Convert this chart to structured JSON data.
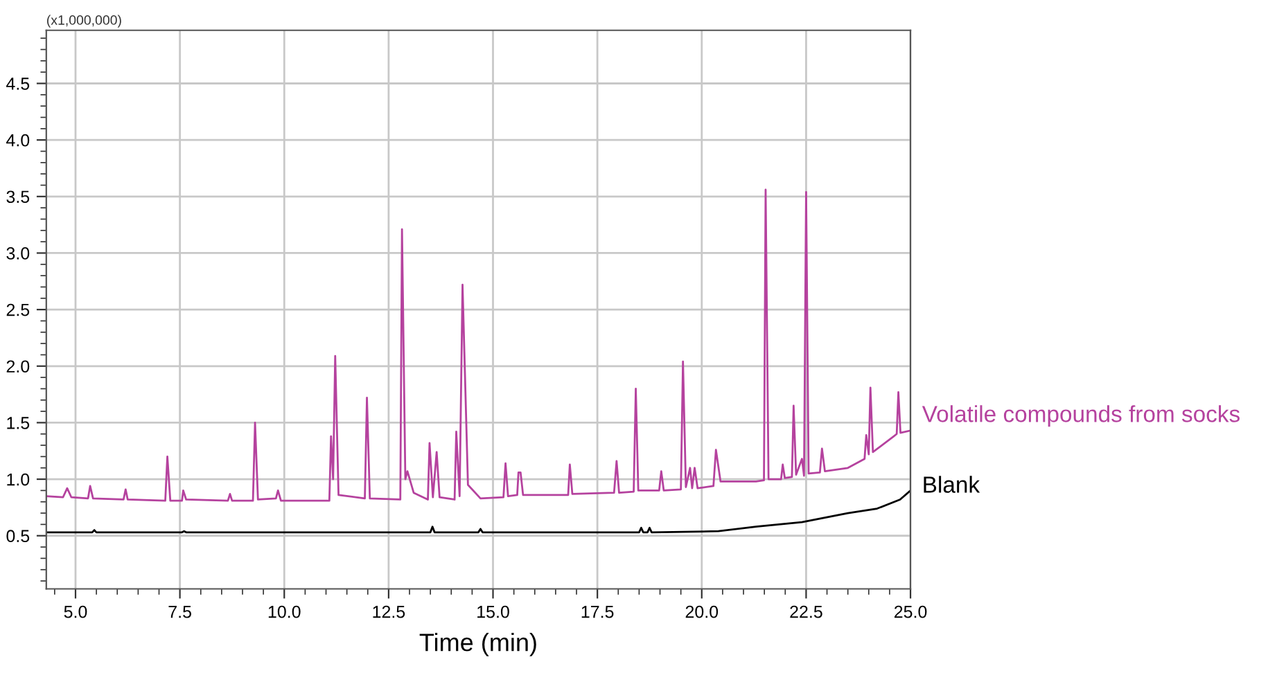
{
  "chart_data": {
    "type": "line",
    "xlabel": "Time (min)",
    "annotations": [
      "(x1,000,000)"
    ],
    "xlim": [
      4.3,
      25.0
    ],
    "ylim": [
      0.03,
      4.97
    ],
    "xticks": [
      {
        "value": 4.5,
        "label": null
      },
      {
        "value": 5.0,
        "label": "5.0"
      },
      {
        "value": 5.5,
        "label": null
      },
      {
        "value": 6.0,
        "label": null
      },
      {
        "value": 6.5,
        "label": null
      },
      {
        "value": 7.0,
        "label": null
      },
      {
        "value": 7.5,
        "label": "7.5"
      },
      {
        "value": 8.0,
        "label": null
      },
      {
        "value": 8.5,
        "label": null
      },
      {
        "value": 9.0,
        "label": null
      },
      {
        "value": 9.5,
        "label": null
      },
      {
        "value": 10.0,
        "label": "10.0"
      },
      {
        "value": 10.5,
        "label": null
      },
      {
        "value": 11.0,
        "label": null
      },
      {
        "value": 11.5,
        "label": null
      },
      {
        "value": 12.0,
        "label": null
      },
      {
        "value": 12.5,
        "label": "12.5"
      },
      {
        "value": 13.0,
        "label": null
      },
      {
        "value": 13.5,
        "label": null
      },
      {
        "value": 14.0,
        "label": null
      },
      {
        "value": 14.5,
        "label": null
      },
      {
        "value": 15.0,
        "label": "15.0"
      },
      {
        "value": 15.5,
        "label": null
      },
      {
        "value": 16.0,
        "label": null
      },
      {
        "value": 16.5,
        "label": null
      },
      {
        "value": 17.0,
        "label": null
      },
      {
        "value": 17.5,
        "label": "17.5"
      },
      {
        "value": 18.0,
        "label": null
      },
      {
        "value": 18.5,
        "label": null
      },
      {
        "value": 19.0,
        "label": null
      },
      {
        "value": 19.5,
        "label": null
      },
      {
        "value": 20.0,
        "label": "20.0"
      },
      {
        "value": 20.5,
        "label": null
      },
      {
        "value": 21.0,
        "label": null
      },
      {
        "value": 21.5,
        "label": null
      },
      {
        "value": 22.0,
        "label": null
      },
      {
        "value": 22.5,
        "label": "22.5"
      },
      {
        "value": 23.0,
        "label": null
      },
      {
        "value": 23.5,
        "label": null
      },
      {
        "value": 24.0,
        "label": null
      },
      {
        "value": 24.5,
        "label": null
      },
      {
        "value": 25.0,
        "label": "25.0"
      }
    ],
    "yticks": [
      {
        "value": 0.1,
        "label": null
      },
      {
        "value": 0.2,
        "label": null
      },
      {
        "value": 0.3,
        "label": null
      },
      {
        "value": 0.4,
        "label": null
      },
      {
        "value": 0.5,
        "label": "0.5"
      },
      {
        "value": 0.6,
        "label": null
      },
      {
        "value": 0.7,
        "label": null
      },
      {
        "value": 0.8,
        "label": null
      },
      {
        "value": 0.9,
        "label": null
      },
      {
        "value": 1.0,
        "label": "1.0"
      },
      {
        "value": 1.1,
        "label": null
      },
      {
        "value": 1.2,
        "label": null
      },
      {
        "value": 1.3,
        "label": null
      },
      {
        "value": 1.4,
        "label": null
      },
      {
        "value": 1.5,
        "label": "1.5"
      },
      {
        "value": 1.6,
        "label": null
      },
      {
        "value": 1.7,
        "label": null
      },
      {
        "value": 1.8,
        "label": null
      },
      {
        "value": 1.9,
        "label": null
      },
      {
        "value": 2.0,
        "label": "2.0"
      },
      {
        "value": 2.1,
        "label": null
      },
      {
        "value": 2.2,
        "label": null
      },
      {
        "value": 2.3,
        "label": null
      },
      {
        "value": 2.4,
        "label": null
      },
      {
        "value": 2.5,
        "label": "2.5"
      },
      {
        "value": 2.6,
        "label": null
      },
      {
        "value": 2.7,
        "label": null
      },
      {
        "value": 2.8,
        "label": null
      },
      {
        "value": 2.9,
        "label": null
      },
      {
        "value": 3.0,
        "label": "3.0"
      },
      {
        "value": 3.1,
        "label": null
      },
      {
        "value": 3.2,
        "label": null
      },
      {
        "value": 3.3,
        "label": null
      },
      {
        "value": 3.4,
        "label": null
      },
      {
        "value": 3.5,
        "label": "3.5"
      },
      {
        "value": 3.6,
        "label": null
      },
      {
        "value": 3.7,
        "label": null
      },
      {
        "value": 3.8,
        "label": null
      },
      {
        "value": 3.9,
        "label": null
      },
      {
        "value": 4.0,
        "label": "4.0"
      },
      {
        "value": 4.1,
        "label": null
      },
      {
        "value": 4.2,
        "label": null
      },
      {
        "value": 4.3,
        "label": null
      },
      {
        "value": 4.4,
        "label": null
      },
      {
        "value": 4.5,
        "label": "4.5"
      },
      {
        "value": 4.6,
        "label": null
      },
      {
        "value": 4.7,
        "label": null
      },
      {
        "value": 4.8,
        "label": null
      },
      {
        "value": 4.9,
        "label": null
      }
    ],
    "grid": true,
    "legend": false,
    "marker": "none",
    "line_style": "solid",
    "series": [
      {
        "name": "Volatile compounds from socks",
        "color": "#b5429e",
        "x": [
          4.3,
          4.7,
          4.8,
          4.9,
          5.3,
          5.35,
          5.42,
          6.15,
          6.2,
          6.25,
          7.15,
          7.2,
          7.27,
          7.55,
          7.58,
          7.65,
          8.65,
          8.7,
          8.75,
          9.25,
          9.3,
          9.37,
          9.8,
          9.85,
          9.92,
          11.08,
          11.12,
          11.17,
          11.22,
          11.3,
          11.93,
          11.98,
          12.05,
          12.78,
          12.82,
          12.9,
          12.95,
          13.1,
          13.44,
          13.48,
          13.56,
          13.65,
          13.72,
          14.08,
          14.12,
          14.2,
          14.27,
          14.4,
          14.7,
          15.25,
          15.3,
          15.36,
          15.58,
          15.61,
          15.66,
          15.72,
          16.8,
          16.84,
          16.9,
          17.9,
          17.96,
          18.02,
          18.37,
          18.42,
          18.48,
          18.98,
          19.03,
          19.09,
          19.5,
          19.55,
          19.62,
          19.72,
          19.77,
          19.83,
          19.9,
          20.28,
          20.34,
          20.45,
          21.3,
          21.49,
          21.53,
          21.6,
          21.9,
          21.94,
          21.99,
          22.16,
          22.2,
          22.26,
          22.4,
          22.45,
          22.5,
          22.56,
          22.83,
          22.88,
          22.95,
          23.5,
          23.9,
          23.94,
          24.0,
          24.04,
          24.1,
          24.6,
          24.67,
          24.71,
          24.76,
          25.0
        ],
        "values": [
          0.85,
          0.84,
          0.92,
          0.84,
          0.83,
          0.94,
          0.83,
          0.82,
          0.91,
          0.82,
          0.81,
          1.2,
          0.81,
          0.81,
          0.9,
          0.82,
          0.81,
          0.87,
          0.81,
          0.81,
          1.5,
          0.82,
          0.83,
          0.9,
          0.81,
          0.81,
          1.38,
          1.0,
          2.09,
          0.86,
          0.83,
          1.72,
          0.83,
          0.82,
          3.21,
          1.0,
          1.07,
          0.88,
          0.82,
          1.32,
          0.84,
          1.24,
          0.84,
          0.82,
          1.42,
          0.85,
          2.72,
          0.95,
          0.83,
          0.84,
          1.14,
          0.85,
          0.86,
          1.06,
          1.06,
          0.86,
          0.86,
          1.13,
          0.87,
          0.88,
          1.16,
          0.88,
          0.89,
          1.8,
          0.9,
          0.9,
          1.07,
          0.9,
          0.91,
          2.04,
          0.93,
          1.1,
          0.92,
          1.1,
          0.92,
          0.94,
          1.26,
          0.98,
          0.98,
          0.99,
          3.56,
          1.0,
          1.0,
          1.13,
          1.01,
          1.02,
          1.65,
          1.04,
          1.18,
          1.03,
          3.54,
          1.05,
          1.06,
          1.27,
          1.07,
          1.1,
          1.18,
          1.39,
          1.22,
          1.81,
          1.24,
          1.38,
          1.4,
          1.77,
          1.41,
          1.43
        ]
      },
      {
        "name": "Blank",
        "color": "#000000",
        "x": [
          4.3,
          5.4,
          5.45,
          5.5,
          7.55,
          7.6,
          7.65,
          13.5,
          13.55,
          13.6,
          14.65,
          14.7,
          14.75,
          18.5,
          18.55,
          18.6,
          18.7,
          18.75,
          18.8,
          20.4,
          21.3,
          22.4,
          23.5,
          24.2,
          24.75,
          25.0
        ],
        "values": [
          0.53,
          0.53,
          0.55,
          0.53,
          0.53,
          0.54,
          0.53,
          0.53,
          0.58,
          0.53,
          0.53,
          0.56,
          0.53,
          0.53,
          0.57,
          0.53,
          0.53,
          0.57,
          0.53,
          0.54,
          0.58,
          0.62,
          0.7,
          0.74,
          0.82,
          0.9
        ]
      }
    ]
  }
}
